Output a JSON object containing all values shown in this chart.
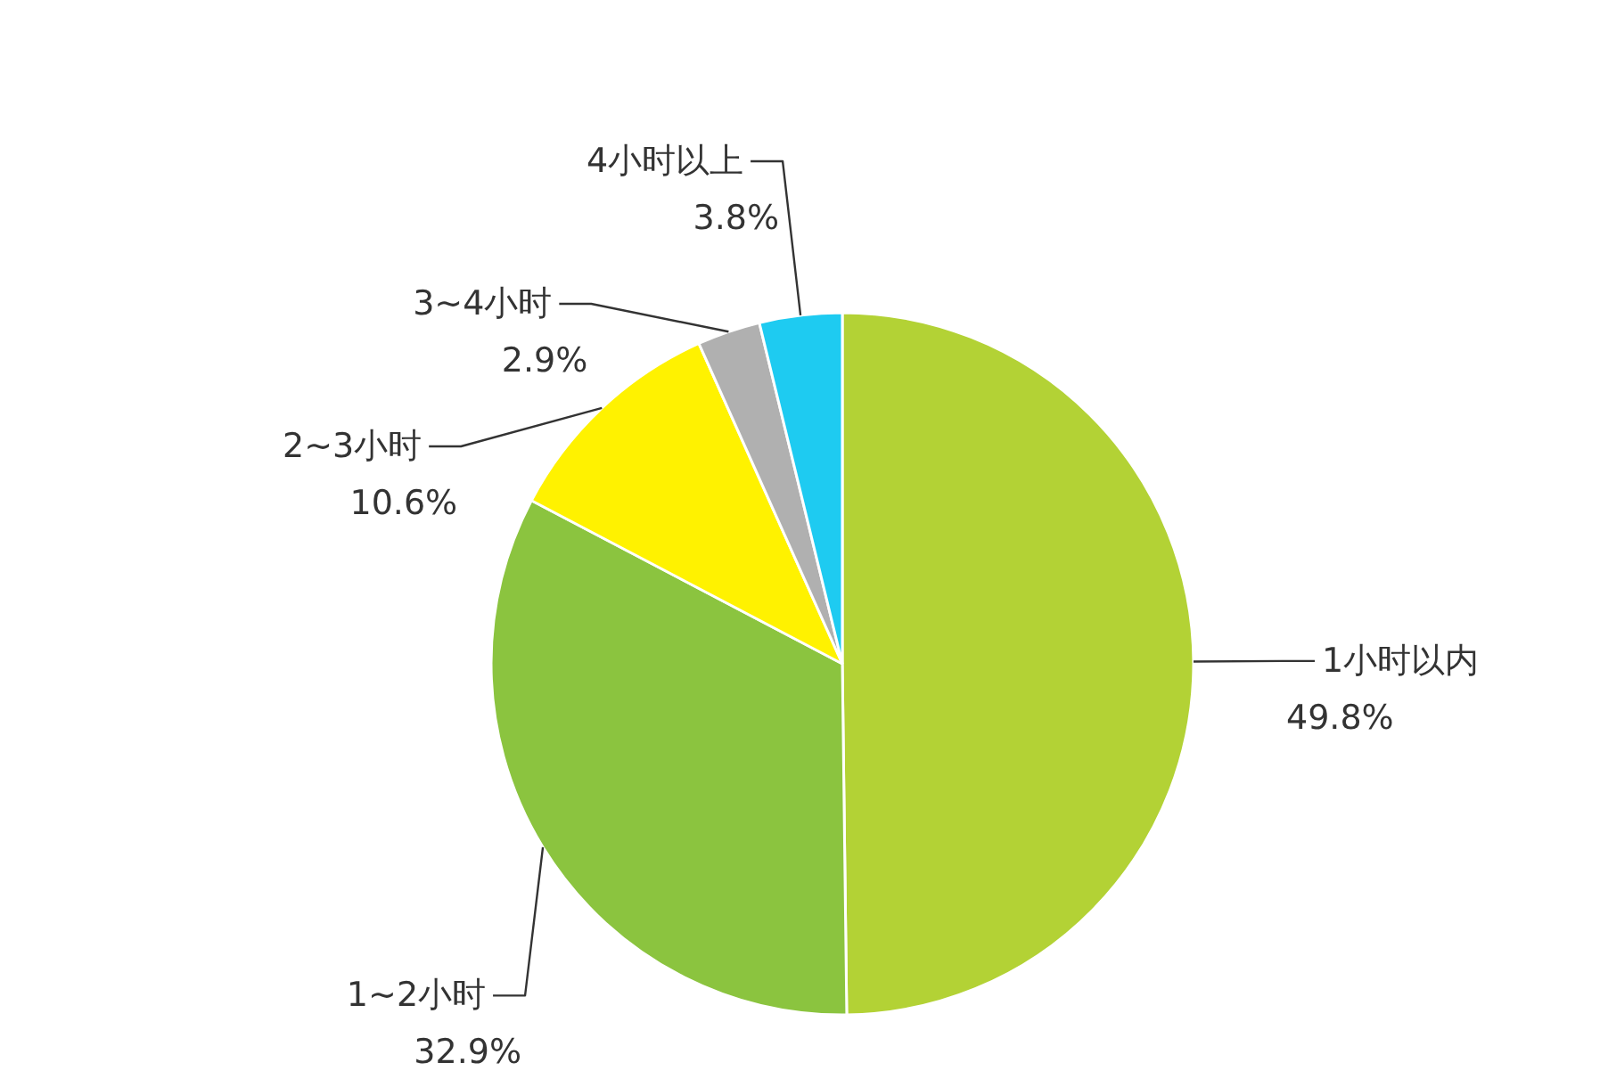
{
  "chart_data": {
    "type": "pie",
    "categories": [
      "1小时以内",
      "1~2小时",
      "2~3小时",
      "3~4小时",
      "4小时以上"
    ],
    "values": [
      49.8,
      32.9,
      10.6,
      2.9,
      3.8
    ],
    "colors": [
      "#b3d235",
      "#8bc43f",
      "#fff200",
      "#b0b0b0",
      "#1ecbf1"
    ],
    "value_labels": [
      "49.8%",
      "32.9%",
      "10.6%",
      "2.9%",
      "3.8%"
    ]
  }
}
